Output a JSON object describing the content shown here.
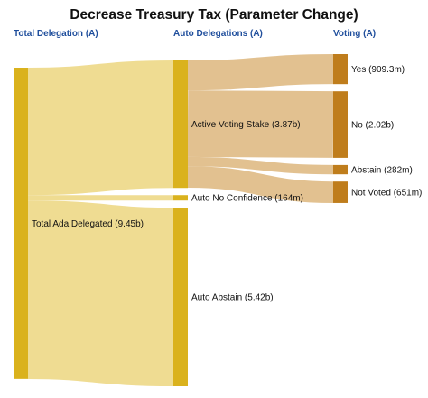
{
  "title": "Decrease Treasury Tax (Parameter Change)",
  "columns": [
    "Total Delegation (A)",
    "Auto Delegations (A)",
    "Voting (A)"
  ],
  "colors": {
    "yellow_node": "#dab21d",
    "yellow_link": "#ecd67f",
    "orange_node": "#bf7d1c",
    "orange_link": "#ddb67d",
    "column_header": "#1f4e9c"
  },
  "nodes": [
    {
      "label": "Total Ada Delegated (9.45b)",
      "column": 0,
      "value": 9.45,
      "color": "yellow"
    },
    {
      "label": "Active Voting Stake (3.87b)",
      "column": 1,
      "value": 3.87,
      "color": "yellow"
    },
    {
      "label": "Auto No Confidence (164m)",
      "column": 1,
      "value": 0.164,
      "color": "yellow"
    },
    {
      "label": "Auto Abstain (5.42b)",
      "column": 1,
      "value": 5.42,
      "color": "yellow"
    },
    {
      "label": "Yes (909.3m)",
      "column": 2,
      "value": 0.9093,
      "color": "orange"
    },
    {
      "label": "No (2.02b)",
      "column": 2,
      "value": 2.02,
      "color": "orange"
    },
    {
      "label": "Abstain (282m)",
      "column": 2,
      "value": 0.282,
      "color": "orange"
    },
    {
      "label": "Not Voted (651m)",
      "column": 2,
      "value": 0.651,
      "color": "orange"
    }
  ],
  "links": [
    {
      "source": 0,
      "target": 1,
      "value": 3.87
    },
    {
      "source": 0,
      "target": 2,
      "value": 0.164
    },
    {
      "source": 0,
      "target": 3,
      "value": 5.42
    },
    {
      "source": 1,
      "target": 4,
      "value": 0.9093
    },
    {
      "source": 1,
      "target": 5,
      "value": 2.02
    },
    {
      "source": 1,
      "target": 6,
      "value": 0.282
    },
    {
      "source": 1,
      "target": 7,
      "value": 0.651
    }
  ]
}
